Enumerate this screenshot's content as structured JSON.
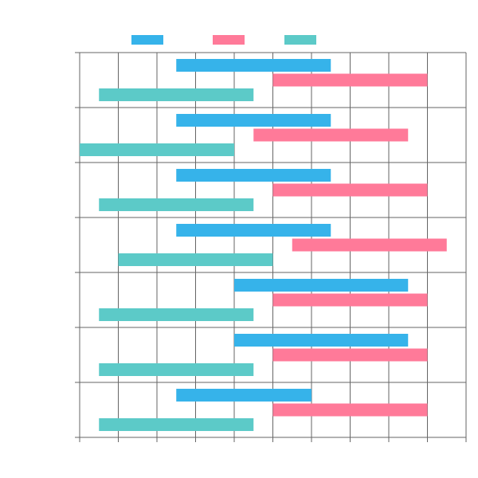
{
  "chart_data": {
    "type": "floating-bar",
    "orientation": "horizontal",
    "categories": [
      "",
      "",
      "",
      "",
      "",
      "",
      ""
    ],
    "x_range": [
      0,
      20
    ],
    "x_tick_step": 2,
    "grid": true,
    "legend_position": "top",
    "series": [
      {
        "color": "#36b3ea",
        "ranges": [
          [
            5,
            13
          ],
          [
            5,
            13
          ],
          [
            5,
            13
          ],
          [
            5,
            13
          ],
          [
            8,
            17
          ],
          [
            8,
            17
          ],
          [
            5,
            12
          ]
        ]
      },
      {
        "color": "#ff7a99",
        "ranges": [
          [
            10,
            18
          ],
          [
            9,
            17
          ],
          [
            10,
            18
          ],
          [
            11,
            19
          ],
          [
            10,
            18
          ],
          [
            10,
            18
          ],
          [
            10,
            18
          ]
        ]
      },
      {
        "color": "#5ccac8",
        "ranges": [
          [
            1,
            9
          ],
          [
            0,
            8
          ],
          [
            1,
            9
          ],
          [
            2,
            10
          ],
          [
            1,
            9
          ],
          [
            1,
            9
          ],
          [
            1,
            9
          ]
        ]
      }
    ]
  }
}
